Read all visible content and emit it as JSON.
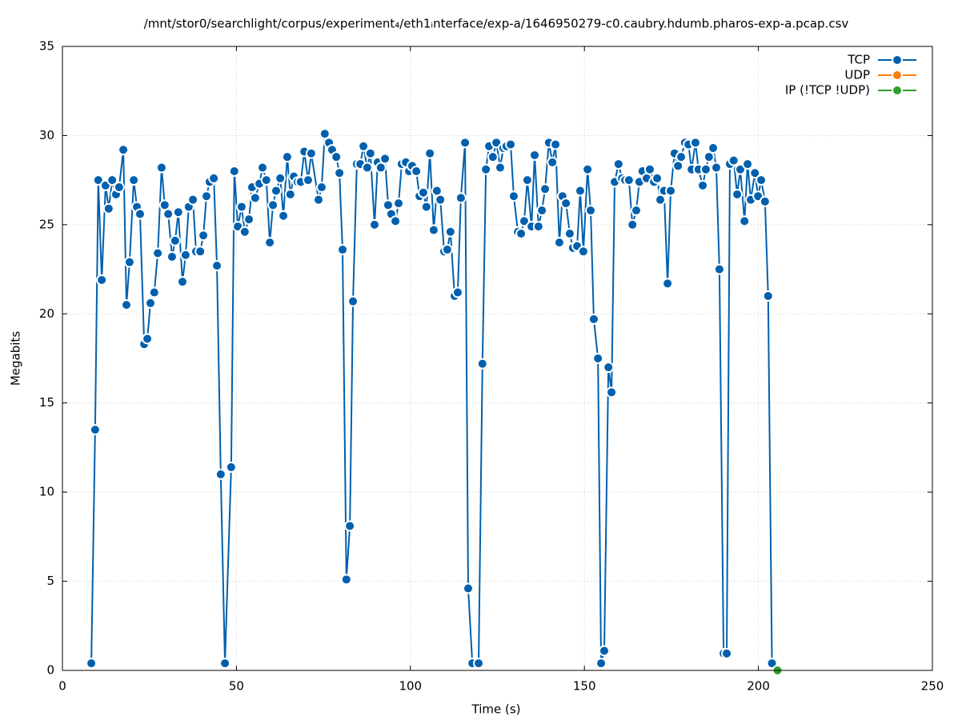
{
  "chart_data": {
    "type": "line",
    "title": "/mnt/stor0/searchlight/corpus/experiment₄/eth1ᵢnterface/exp-a/1646950279-c0.caubry.hdumb.pharos-exp-a.pcap.csv",
    "xlabel": "Time (s)",
    "ylabel": "Megabits",
    "xlim": [
      0,
      250
    ],
    "xticks": [
      0,
      50,
      100,
      150,
      200,
      250
    ],
    "ylim": [
      0,
      35
    ],
    "yticks": [
      0,
      5,
      10,
      15,
      20,
      25,
      30,
      35
    ],
    "grid": true,
    "legend": "top-right",
    "series": [
      {
        "name": "TCP",
        "color": "#0060ad",
        "x": [
          8.3,
          9.4,
          10.3,
          11.3,
          12.4,
          13.3,
          14.3,
          15.4,
          16.3,
          17.5,
          18.4,
          19.3,
          20.5,
          21.4,
          22.3,
          23.5,
          24.4,
          25.3,
          26.4,
          27.4,
          28.5,
          29.4,
          30.4,
          31.5,
          32.4,
          33.3,
          34.5,
          35.4,
          36.3,
          37.5,
          38.4,
          39.6,
          40.5,
          41.4,
          42.3,
          43.5,
          44.4,
          45.5,
          46.7,
          48.5,
          49.4,
          50.4,
          51.5,
          52.4,
          53.6,
          54.5,
          55.4,
          56.6,
          57.5,
          58.6,
          59.6,
          60.5,
          61.4,
          62.6,
          63.5,
          64.6,
          65.5,
          66.5,
          67.6,
          68.5,
          69.5,
          70.6,
          71.5,
          73.6,
          74.5,
          75.4,
          76.6,
          77.5,
          78.7,
          79.6,
          80.5,
          81.6,
          82.6,
          83.5,
          84.6,
          85.6,
          86.5,
          87.6,
          88.5,
          89.7,
          90.6,
          91.5,
          92.7,
          93.6,
          94.5,
          95.7,
          96.6,
          97.5,
          98.7,
          99.6,
          100.5,
          101.7,
          102.6,
          103.7,
          104.6,
          105.6,
          106.7,
          107.6,
          108.6,
          109.7,
          110.6,
          111.5,
          112.7,
          113.6,
          114.5,
          115.7,
          116.6,
          117.8,
          119.6,
          120.7,
          121.7,
          122.6,
          123.7,
          124.7,
          125.8,
          126.7,
          127.6,
          128.8,
          129.7,
          130.9,
          131.8,
          132.7,
          133.6,
          134.8,
          135.7,
          136.8,
          137.8,
          138.7,
          139.8,
          140.8,
          141.7,
          142.8,
          143.7,
          144.7,
          145.8,
          146.7,
          147.9,
          148.8,
          149.7,
          150.9,
          151.8,
          152.7,
          153.9,
          154.8,
          155.7,
          156.9,
          157.8,
          158.7,
          159.8,
          160.8,
          161.7,
          162.8,
          163.8,
          164.9,
          165.8,
          166.7,
          167.9,
          168.8,
          170.0,
          170.9,
          171.8,
          172.9,
          173.9,
          174.8,
          175.9,
          176.9,
          177.8,
          178.9,
          179.9,
          180.8,
          181.9,
          182.8,
          184.0,
          184.9,
          185.8,
          187.0,
          187.9,
          188.8,
          190.0,
          190.9,
          191.8,
          192.9,
          193.9,
          194.8,
          196.0,
          196.9,
          197.8,
          199.0,
          199.9,
          200.8,
          201.9,
          202.8,
          203.9
        ],
        "values": [
          0.4,
          13.5,
          27.5,
          21.9,
          27.2,
          25.9,
          27.5,
          26.7,
          27.1,
          29.2,
          20.5,
          22.9,
          27.5,
          26.0,
          25.6,
          18.3,
          18.6,
          20.6,
          21.2,
          23.4,
          28.2,
          26.1,
          25.6,
          23.2,
          24.1,
          25.7,
          21.8,
          23.3,
          26.0,
          26.4,
          23.5,
          23.5,
          24.4,
          26.6,
          27.4,
          27.6,
          22.7,
          11.0,
          0.4,
          11.4,
          28.0,
          24.9,
          26.0,
          24.6,
          25.3,
          27.1,
          26.5,
          27.3,
          28.2,
          27.5,
          24.0,
          26.1,
          26.9,
          27.6,
          25.5,
          28.8,
          26.7,
          27.7,
          27.4,
          27.4,
          29.1,
          27.5,
          29.0,
          26.4,
          27.1,
          30.1,
          29.6,
          29.2,
          28.8,
          27.9,
          23.6,
          5.1,
          8.1,
          20.7,
          28.4,
          28.4,
          29.4,
          28.2,
          29.0,
          25.0,
          28.5,
          28.2,
          28.7,
          26.1,
          25.6,
          25.2,
          26.2,
          28.4,
          28.5,
          28.0,
          28.3,
          28.0,
          26.6,
          26.8,
          26.0,
          29.0,
          24.7,
          26.9,
          26.4,
          23.5,
          23.6,
          24.6,
          21.0,
          21.2,
          26.5,
          29.6,
          4.6,
          0.4,
          0.4,
          17.2,
          28.1,
          29.4,
          28.8,
          29.6,
          28.2,
          29.3,
          29.4,
          29.5,
          26.6,
          24.6,
          24.5,
          25.2,
          27.5,
          24.9,
          28.9,
          24.9,
          25.8,
          27.0,
          29.6,
          28.5,
          29.5,
          24.0,
          26.6,
          26.2,
          24.5,
          23.7,
          23.8,
          26.9,
          23.5,
          28.1,
          25.8,
          19.7,
          17.5,
          0.4,
          1.1,
          17.0,
          15.6,
          27.4,
          28.4,
          27.6,
          27.5,
          27.5,
          25.0,
          25.8,
          27.4,
          28.0,
          27.6,
          28.1,
          27.4,
          27.6,
          26.4,
          26.9,
          21.7,
          26.9,
          29.0,
          28.3,
          28.8,
          29.6,
          29.5,
          28.1,
          29.6,
          28.1,
          27.2,
          28.1,
          28.8,
          29.3,
          28.2,
          22.5,
          0.95,
          0.95,
          28.4,
          28.6,
          26.7,
          28.1,
          25.2,
          28.4,
          26.4,
          27.9,
          26.6,
          27.5,
          26.3,
          21.0,
          0.4
        ]
      },
      {
        "name": "UDP",
        "color": "#ff7f0e",
        "x": [],
        "values": []
      },
      {
        "name": "IP (!TCP  !UDP)",
        "color": "#2ca02c",
        "x": [
          205.5
        ],
        "values": [
          0
        ]
      }
    ]
  }
}
